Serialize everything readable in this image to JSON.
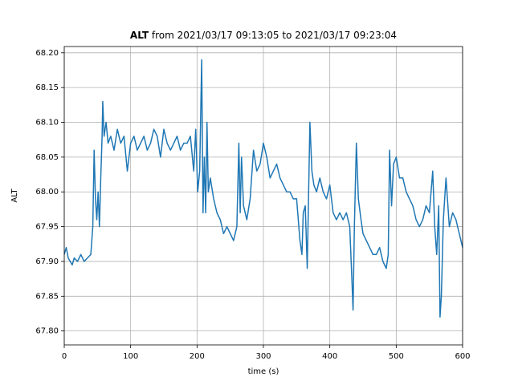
{
  "chart_data": {
    "type": "line",
    "title": {
      "bold": "ALT",
      "text": "from 2021/03/17 09:13:05 to 2021/03/17 09:23:04"
    },
    "xlabel": "time (s)",
    "ylabel": "ALT",
    "xlim": [
      0,
      600
    ],
    "ylim": [
      67.78,
      68.209
    ],
    "xticks": [
      0,
      100,
      200,
      300,
      400,
      500,
      600
    ],
    "yticks": [
      {
        "value": 67.8,
        "label": "67.80"
      },
      67.85,
      {
        "value": 67.9,
        "label": "67.90"
      },
      67.95,
      {
        "value": 68.0,
        "label": "68.00"
      },
      68.05,
      {
        "value": 68.1,
        "label": "68.10"
      },
      68.15,
      {
        "value": 68.2,
        "label": "68.20"
      }
    ],
    "grid": true,
    "series": [
      {
        "color": "#1f77b4",
        "x": [
          0,
          3,
          6,
          9,
          12,
          15,
          20,
          25,
          30,
          35,
          40,
          43,
          45,
          47,
          49,
          51,
          53,
          55,
          57,
          58,
          60,
          63,
          66,
          70,
          75,
          80,
          85,
          90,
          95,
          100,
          105,
          110,
          115,
          120,
          125,
          130,
          135,
          140,
          145,
          150,
          155,
          160,
          165,
          170,
          175,
          180,
          185,
          190,
          195,
          198,
          201,
          204,
          207,
          209,
          211,
          213,
          215,
          217,
          220,
          225,
          230,
          235,
          240,
          245,
          250,
          255,
          260,
          263,
          265,
          267,
          270,
          275,
          280,
          285,
          290,
          295,
          300,
          305,
          310,
          315,
          320,
          325,
          330,
          335,
          340,
          345,
          350,
          355,
          358,
          360,
          363,
          366,
          370,
          373,
          376,
          380,
          385,
          390,
          395,
          400,
          405,
          410,
          415,
          420,
          425,
          430,
          433,
          435,
          437,
          440,
          443,
          447,
          450,
          455,
          460,
          465,
          470,
          475,
          480,
          485,
          488,
          490,
          493,
          496,
          500,
          505,
          510,
          515,
          520,
          525,
          530,
          535,
          540,
          545,
          550,
          555,
          558,
          561,
          564,
          566,
          568,
          571,
          575,
          580,
          585,
          590,
          595,
          600
        ],
        "values": [
          67.91,
          67.92,
          67.905,
          67.9,
          67.895,
          67.905,
          67.9,
          67.91,
          67.9,
          67.905,
          67.91,
          67.95,
          68.06,
          67.99,
          67.96,
          68.0,
          67.95,
          68.02,
          68.08,
          68.13,
          68.08,
          68.1,
          68.07,
          68.08,
          68.06,
          68.09,
          68.07,
          68.08,
          68.03,
          68.07,
          68.08,
          68.06,
          68.07,
          68.08,
          68.06,
          68.07,
          68.09,
          68.08,
          68.05,
          68.09,
          68.07,
          68.06,
          68.07,
          68.08,
          68.06,
          68.07,
          68.07,
          68.08,
          68.03,
          68.09,
          68.0,
          68.03,
          68.19,
          67.97,
          68.05,
          67.97,
          68.1,
          68.0,
          68.02,
          67.99,
          67.97,
          67.96,
          67.94,
          67.95,
          67.94,
          67.93,
          67.95,
          68.07,
          67.97,
          68.05,
          67.98,
          67.96,
          67.99,
          68.06,
          68.03,
          68.04,
          68.07,
          68.05,
          68.02,
          68.03,
          68.04,
          68.02,
          68.01,
          68.0,
          68.0,
          67.99,
          67.99,
          67.93,
          67.91,
          67.97,
          67.98,
          67.89,
          68.1,
          68.03,
          68.01,
          68.0,
          68.02,
          68.0,
          67.99,
          68.01,
          67.97,
          67.96,
          67.97,
          67.96,
          67.97,
          67.95,
          67.88,
          67.83,
          67.95,
          68.07,
          67.99,
          67.96,
          67.94,
          67.93,
          67.92,
          67.91,
          67.91,
          67.92,
          67.9,
          67.89,
          67.91,
          68.06,
          67.98,
          68.04,
          68.05,
          68.02,
          68.02,
          68.0,
          67.99,
          67.98,
          67.96,
          67.95,
          67.96,
          67.98,
          67.97,
          68.03,
          67.95,
          67.91,
          67.98,
          67.82,
          67.85,
          67.96,
          68.02,
          67.95,
          67.97,
          67.96,
          67.94,
          67.92
        ]
      }
    ]
  }
}
